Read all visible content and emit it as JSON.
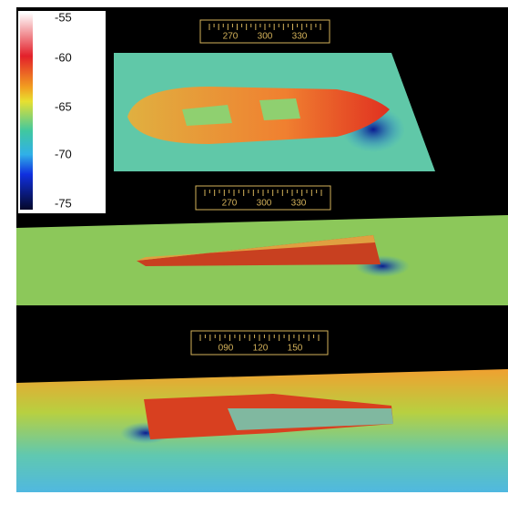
{
  "colorbar": {
    "labels": [
      -55,
      -60,
      -65,
      -70,
      -75
    ]
  },
  "compasses": [
    {
      "labels": [
        "270",
        "300",
        "330"
      ]
    },
    {
      "labels": [
        "270",
        "300",
        "330"
      ]
    },
    {
      "labels": [
        "090",
        "120",
        "150"
      ]
    }
  ]
}
